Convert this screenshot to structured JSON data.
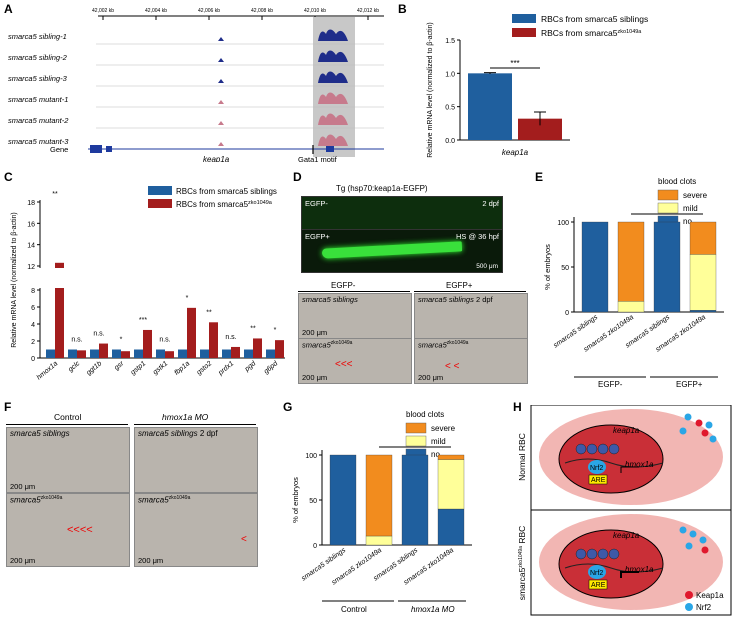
{
  "panels": {
    "A": "A",
    "B": "B",
    "C": "C",
    "D": "D",
    "E": "E",
    "F": "F",
    "G": "G",
    "H": "H"
  },
  "panel_a": {
    "coords": [
      "42,002 kb",
      "42,004 kb",
      "42,006 kb",
      "42,008 kb",
      "42,010 kb",
      "42,012 kb"
    ],
    "tracks": [
      "smarca5 sibling-1",
      "smarca5 sibling-2",
      "smarca5 sibling-3",
      "smarca5 mutant-1",
      "smarca5 mutant-2",
      "smarca5 mutant-3"
    ],
    "gene_label": "Gene",
    "gene_name": "keap1a",
    "motif_label": "Gata1 motif",
    "sibling_color": "#1f2d8a",
    "mutant_color": "#c77a8c"
  },
  "legend": {
    "sibling": "RBCs from smarca5 siblings",
    "mutant_prefix": "RBCs from smarca5",
    "mutant_sup": "zko1049a",
    "sibling_color": "#1f5f9e",
    "mutant_color": "#a31d1d"
  },
  "chart_data": [
    {
      "id": "B",
      "type": "bar",
      "categories": [
        "keap1a"
      ],
      "series": [
        {
          "name": "RBCs from smarca5 siblings",
          "values": [
            1.0
          ]
        },
        {
          "name": "RBCs from smarca5 zko1049a",
          "values": [
            0.32
          ]
        }
      ],
      "error": [
        0.01,
        0.1
      ],
      "significance": "***",
      "ylabel": "Relative mRNA level (normalized to β-actin)",
      "yticks": [
        "0.0",
        "0.5",
        "1.0",
        "1.5"
      ],
      "ylim": [
        0,
        1.5
      ]
    },
    {
      "id": "C",
      "type": "bar",
      "categories": [
        "hmox1a",
        "gclc",
        "ggt1b",
        "gsr",
        "gstp1",
        "gstk1",
        "fbp1a",
        "gsto2",
        "prdx1",
        "pgd",
        "g6pd"
      ],
      "series": [
        {
          "name": "RBCs from smarca5 siblings",
          "values": [
            1,
            1,
            1,
            1,
            1,
            1,
            1,
            1,
            1,
            1,
            1
          ]
        },
        {
          "name": "RBCs from smarca5 zko1049a",
          "values": [
            12.3,
            0.9,
            1.7,
            0.8,
            3.3,
            0.8,
            5.9,
            4.2,
            1.3,
            2.3,
            2.1
          ]
        }
      ],
      "significance": [
        "**",
        "n.s.",
        "n.s.",
        "*",
        "***",
        "n.s.",
        "*",
        "**",
        "n.s.",
        "**",
        "*"
      ],
      "ylabel": "Relative mRNA level (normalized to β-actin)",
      "yticks_low": [
        "0",
        "2",
        "4",
        "6",
        "8"
      ],
      "yticks_high": [
        "12",
        "14",
        "16",
        "18"
      ],
      "ylim": [
        0,
        18
      ]
    },
    {
      "id": "E",
      "type": "bar",
      "stacked": true,
      "categories": [
        "smarca5 siblings",
        "smarca5 zko1049a",
        "smarca5 siblings",
        "smarca5 zko1049a"
      ],
      "groups": [
        "EGFP-",
        "EGFP+"
      ],
      "series": [
        {
          "name": "no",
          "values": [
            100,
            0,
            100,
            2
          ]
        },
        {
          "name": "mild",
          "values": [
            0,
            12,
            0,
            62
          ]
        },
        {
          "name": "severe",
          "values": [
            0,
            88,
            0,
            36
          ]
        }
      ],
      "legend_title": "blood clots",
      "ylabel": "% of embryos",
      "yticks": [
        "0",
        "50",
        "100"
      ],
      "ylim": [
        0,
        100
      ]
    },
    {
      "id": "G",
      "type": "bar",
      "stacked": true,
      "categories": [
        "smarca5 siblings",
        "smarca5 zko1049a",
        "smarca5 siblings",
        "smarca5 zko1049a"
      ],
      "groups": [
        "Control",
        "hmox1a MO"
      ],
      "series": [
        {
          "name": "no",
          "values": [
            100,
            0,
            100,
            40
          ]
        },
        {
          "name": "mild",
          "values": [
            0,
            10,
            0,
            55
          ]
        },
        {
          "name": "severe",
          "values": [
            0,
            90,
            0,
            5
          ]
        }
      ],
      "legend_title": "blood clots",
      "ylabel": "% of embryos",
      "yticks": [
        "0",
        "50",
        "100"
      ],
      "ylim": [
        0,
        100
      ]
    }
  ],
  "clot_colors": {
    "severe": "#f28c1e",
    "mild": "#ffff99",
    "no": "#1f5f9e"
  },
  "panel_d": {
    "title": "Tg (hsp70:keap1a-EGFP)",
    "egfp_minus": "EGFP-",
    "egfp_plus": "EGFP+",
    "dpf": "2 dpf",
    "hs": "HS @ 36 hpf",
    "scale_500": "500 μm",
    "col1": "EGFP-",
    "col2": "EGFP+",
    "siblings": "smarca5 siblings",
    "mutant": "smarca5",
    "mutant_sup": "zko1049a",
    "scale_200": "200 μm"
  },
  "panel_f": {
    "col1": "Control",
    "col2": "hmox1a MO",
    "siblings": "smarca5 siblings",
    "mutant": "smarca5",
    "mutant_sup": "zko1049a",
    "dpf": "2 dpf",
    "scale": "200 μm"
  },
  "panel_h": {
    "normal": "Normal RBC",
    "mutant_prefix": "smarca5",
    "mutant_sup": "zko1049a",
    "rbc": "RBC",
    "keap1a": "keap1a",
    "hmox1a": "hmox1a",
    "nrf2": "Nrf2",
    "are": "ARE",
    "legend_keap1a": "Keap1a",
    "legend_nrf2": "Nrf2",
    "keap_color": "#e0182d",
    "nrf2_color": "#2aa6e6"
  }
}
